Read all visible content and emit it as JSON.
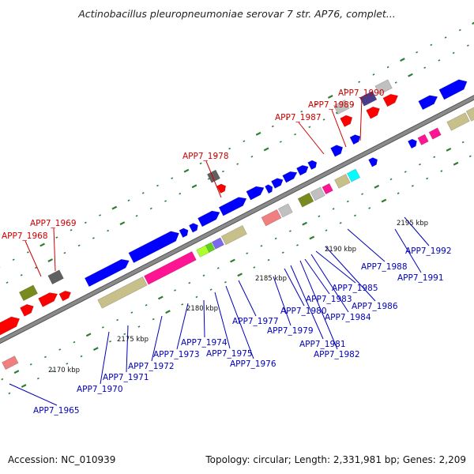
{
  "title": "Actinobacillus pleuropneumoniae serovar 7 str. AP76, complet...",
  "footer": {
    "accession": "Accession: NC_010939",
    "summary": "Topology: circular; Length: 2,331,981 bp; Genes: 2,209"
  },
  "colors": {
    "backbone": "#8a8a8a",
    "tick": "#2e7d32",
    "label_red": "#cc0000",
    "label_blue": "#0000bb"
  },
  "scale_labels": [
    "2170 kbp",
    "2175 kbp",
    "2180 kbp",
    "2185 kbp",
    "2190 kbp",
    "2195 kbp"
  ],
  "genes_upper": [
    "APP7_1968",
    "APP7_1969",
    "APP7_1978",
    "APP7_1987",
    "APP7_1989",
    "APP7_1990"
  ],
  "genes_lower": [
    "APP7_1965",
    "APP7_1970",
    "APP7_1971",
    "APP7_1972",
    "APP7_1973",
    "APP7_1974",
    "APP7_1975",
    "APP7_1976",
    "APP7_1977",
    "APP7_1979",
    "APP7_1980",
    "APP7_1981",
    "APP7_1982",
    "APP7_1983",
    "APP7_1984",
    "APP7_1985",
    "APP7_1986",
    "APP7_1988",
    "APP7_1991",
    "APP7_1992"
  ]
}
